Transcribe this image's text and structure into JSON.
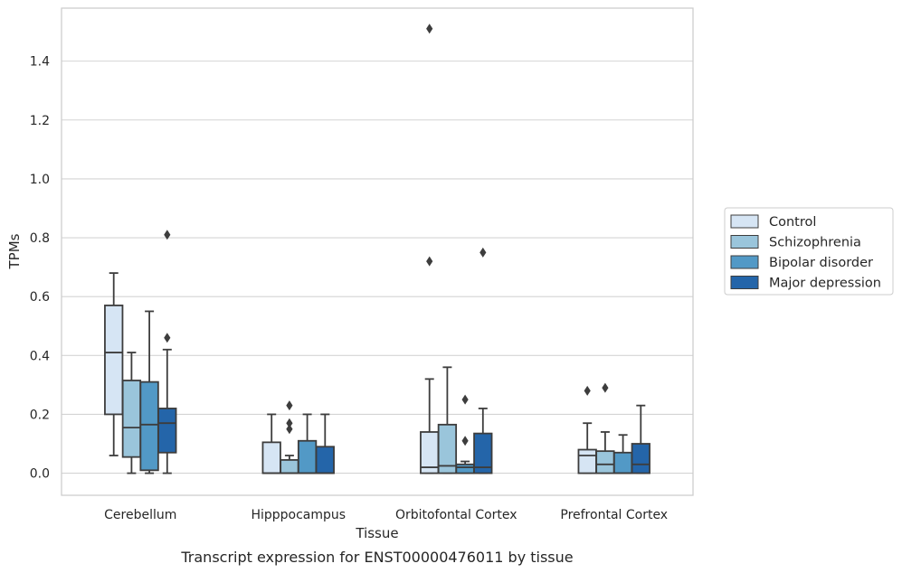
{
  "chart_data": {
    "type": "box",
    "xlabel": "Tissue",
    "ylabel": "TPMs",
    "caption": "Transcript expression for ENST00000476011 by tissue",
    "ylim": [
      -0.075,
      1.58
    ],
    "yticks": [
      "0.0",
      "0.2",
      "0.4",
      "0.6",
      "0.8",
      "1.0",
      "1.2",
      "1.4"
    ],
    "grid": "horizontal",
    "legend_position": "right",
    "categories": [
      "Cerebellum",
      "Hipppocampus",
      "Orbitofontal Cortex",
      "Prefrontal Cortex"
    ],
    "series": [
      {
        "name": "Control",
        "color": "#d6e5f4",
        "boxes": [
          {
            "q1": 0.2,
            "median": 0.41,
            "q3": 0.57,
            "whislo": 0.06,
            "whishi": 0.68,
            "fliers": []
          },
          {
            "q1": 0.0,
            "median": 0.0,
            "q3": 0.105,
            "whislo": 0.0,
            "whishi": 0.2,
            "fliers": []
          },
          {
            "q1": 0.0,
            "median": 0.02,
            "q3": 0.14,
            "whislo": 0.0,
            "whishi": 0.32,
            "fliers": [
              0.72,
              1.51
            ]
          },
          {
            "q1": 0.0,
            "median": 0.06,
            "q3": 0.08,
            "whislo": 0.0,
            "whishi": 0.17,
            "fliers": [
              0.28
            ]
          }
        ]
      },
      {
        "name": "Schizophrenia",
        "color": "#9ac5db",
        "boxes": [
          {
            "q1": 0.055,
            "median": 0.155,
            "q3": 0.315,
            "whislo": 0.0,
            "whishi": 0.41,
            "fliers": []
          },
          {
            "q1": 0.0,
            "median": 0.0,
            "q3": 0.045,
            "whislo": 0.0,
            "whishi": 0.06,
            "fliers": [
              0.15,
              0.17,
              0.23
            ]
          },
          {
            "q1": 0.0,
            "median": 0.025,
            "q3": 0.165,
            "whislo": 0.0,
            "whishi": 0.36,
            "fliers": []
          },
          {
            "q1": 0.0,
            "median": 0.03,
            "q3": 0.075,
            "whislo": 0.0,
            "whishi": 0.14,
            "fliers": [
              0.29
            ]
          }
        ]
      },
      {
        "name": "Bipolar disorder",
        "color": "#5299c6",
        "boxes": [
          {
            "q1": 0.01,
            "median": 0.165,
            "q3": 0.31,
            "whislo": 0.0,
            "whishi": 0.55,
            "fliers": []
          },
          {
            "q1": 0.0,
            "median": 0.0,
            "q3": 0.11,
            "whislo": 0.0,
            "whishi": 0.2,
            "fliers": []
          },
          {
            "q1": 0.0,
            "median": 0.02,
            "q3": 0.03,
            "whislo": 0.0,
            "whishi": 0.04,
            "fliers": [
              0.11,
              0.25
            ]
          },
          {
            "q1": 0.0,
            "median": 0.0,
            "q3": 0.07,
            "whislo": 0.0,
            "whishi": 0.13,
            "fliers": []
          }
        ]
      },
      {
        "name": "Major depression",
        "color": "#2465a9",
        "boxes": [
          {
            "q1": 0.07,
            "median": 0.17,
            "q3": 0.22,
            "whislo": 0.0,
            "whishi": 0.42,
            "fliers": [
              0.46,
              0.81
            ]
          },
          {
            "q1": 0.0,
            "median": 0.0,
            "q3": 0.09,
            "whislo": 0.0,
            "whishi": 0.2,
            "fliers": []
          },
          {
            "q1": 0.0,
            "median": 0.02,
            "q3": 0.135,
            "whislo": 0.0,
            "whishi": 0.22,
            "fliers": [
              0.75
            ]
          },
          {
            "q1": 0.0,
            "median": 0.03,
            "q3": 0.1,
            "whislo": 0.0,
            "whishi": 0.23,
            "fliers": []
          }
        ]
      }
    ]
  }
}
